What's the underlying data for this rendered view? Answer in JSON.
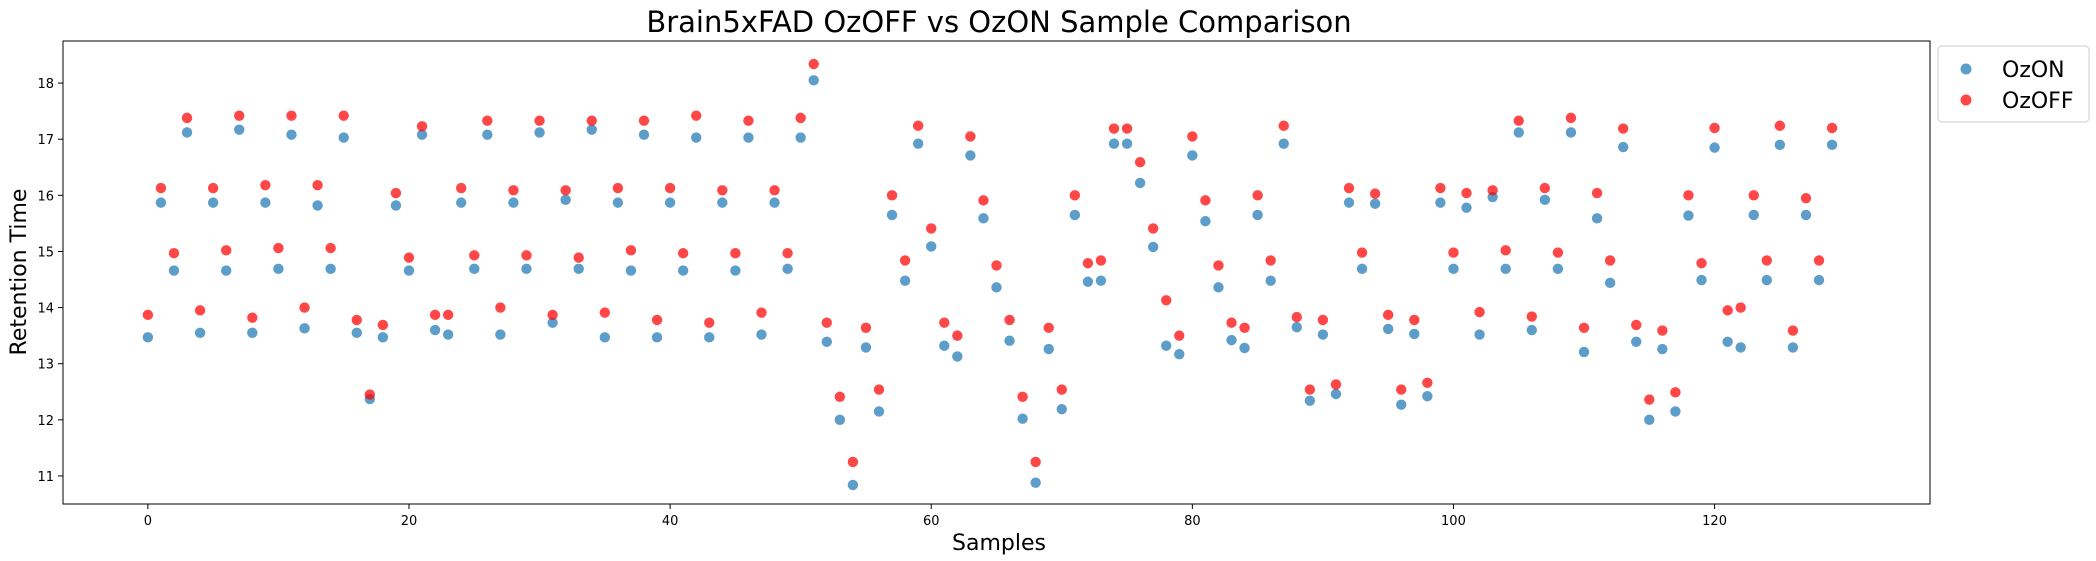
{
  "chart_data": {
    "type": "scatter",
    "title": "Brain5xFAD OzOFF vs OzON Sample Comparison",
    "xlabel": "Samples",
    "ylabel": "Retention Time",
    "xlim": [
      -6.5,
      136.5
    ],
    "ylim": [
      10.5,
      18.75
    ],
    "xticks": [
      0,
      20,
      40,
      60,
      80,
      100,
      120
    ],
    "yticks": [
      11,
      12,
      13,
      14,
      15,
      16,
      17,
      18
    ],
    "grid": false,
    "legend_position": "upper-right-outside",
    "series": [
      {
        "name": "OzON",
        "color": "#1f77b4",
        "y": [
          13.47,
          15.87,
          14.66,
          17.12,
          13.55,
          15.87,
          14.66,
          17.17,
          13.55,
          15.87,
          14.69,
          17.08,
          13.63,
          15.82,
          14.69,
          17.03,
          13.55,
          12.37,
          13.47,
          15.82,
          14.66,
          17.08,
          13.6,
          13.52,
          15.87,
          14.69,
          17.08,
          13.52,
          15.87,
          14.69,
          17.12,
          13.73,
          15.92,
          14.69,
          17.17,
          13.47,
          15.87,
          14.66,
          17.08,
          13.47,
          15.87,
          14.66,
          17.03,
          13.47,
          15.87,
          14.66,
          17.03,
          13.52,
          15.87,
          14.69,
          17.03,
          18.05,
          13.39,
          12.0,
          10.84,
          13.29,
          12.15,
          15.65,
          14.48,
          16.92,
          15.09,
          13.32,
          13.13,
          16.71,
          15.59,
          14.36,
          13.41,
          12.02,
          10.88,
          13.26,
          12.19,
          15.65,
          14.46,
          14.48,
          16.92,
          16.92,
          16.22,
          15.08,
          13.32,
          13.17,
          16.71,
          15.54,
          14.36,
          13.42,
          13.28,
          15.65,
          14.48,
          16.92,
          13.65,
          12.34,
          13.52,
          12.46,
          15.87,
          14.69,
          15.85,
          13.62,
          12.27,
          13.53,
          12.42,
          15.87,
          14.69,
          15.78,
          13.52,
          15.97,
          14.69,
          17.12,
          13.6,
          15.92,
          14.69,
          17.12,
          13.21,
          15.59,
          14.44,
          16.86,
          13.39,
          12.0,
          13.26,
          12.15,
          15.64,
          14.49,
          16.85,
          13.39,
          13.29,
          15.65,
          14.49,
          16.9,
          13.29,
          15.65,
          14.49,
          16.9
        ]
      },
      {
        "name": "OzOFF",
        "color": "#ff0000",
        "y": [
          13.87,
          16.13,
          14.97,
          17.38,
          13.95,
          16.13,
          15.02,
          17.42,
          13.82,
          16.18,
          15.06,
          17.42,
          14.0,
          16.18,
          15.06,
          17.42,
          13.78,
          12.45,
          13.69,
          16.04,
          14.89,
          17.23,
          13.87,
          13.87,
          16.13,
          14.93,
          17.33,
          14.0,
          16.09,
          14.93,
          17.33,
          13.87,
          16.09,
          14.89,
          17.33,
          13.91,
          16.13,
          15.02,
          17.33,
          13.78,
          16.13,
          14.97,
          17.42,
          13.73,
          16.09,
          14.97,
          17.33,
          13.91,
          16.09,
          14.97,
          17.38,
          18.34,
          13.73,
          12.41,
          11.25,
          13.64,
          12.54,
          16.0,
          14.84,
          17.24,
          15.41,
          13.73,
          13.5,
          17.05,
          15.91,
          14.75,
          13.78,
          12.41,
          11.25,
          13.64,
          12.54,
          16.0,
          14.79,
          14.84,
          17.19,
          17.19,
          16.59,
          15.41,
          14.13,
          13.5,
          17.05,
          15.91,
          14.75,
          13.73,
          13.64,
          16.0,
          14.84,
          17.24,
          13.83,
          12.54,
          13.78,
          12.63,
          16.13,
          14.98,
          16.03,
          13.87,
          12.54,
          13.78,
          12.66,
          16.13,
          14.98,
          16.04,
          13.92,
          16.09,
          15.02,
          17.33,
          13.84,
          16.13,
          14.98,
          17.38,
          13.64,
          16.04,
          14.84,
          17.19,
          13.69,
          12.36,
          13.59,
          12.49,
          16.0,
          14.79,
          17.2,
          13.95,
          14.0,
          16.0,
          14.84,
          17.24,
          13.59,
          15.95,
          14.84,
          17.2
        ]
      }
    ]
  }
}
